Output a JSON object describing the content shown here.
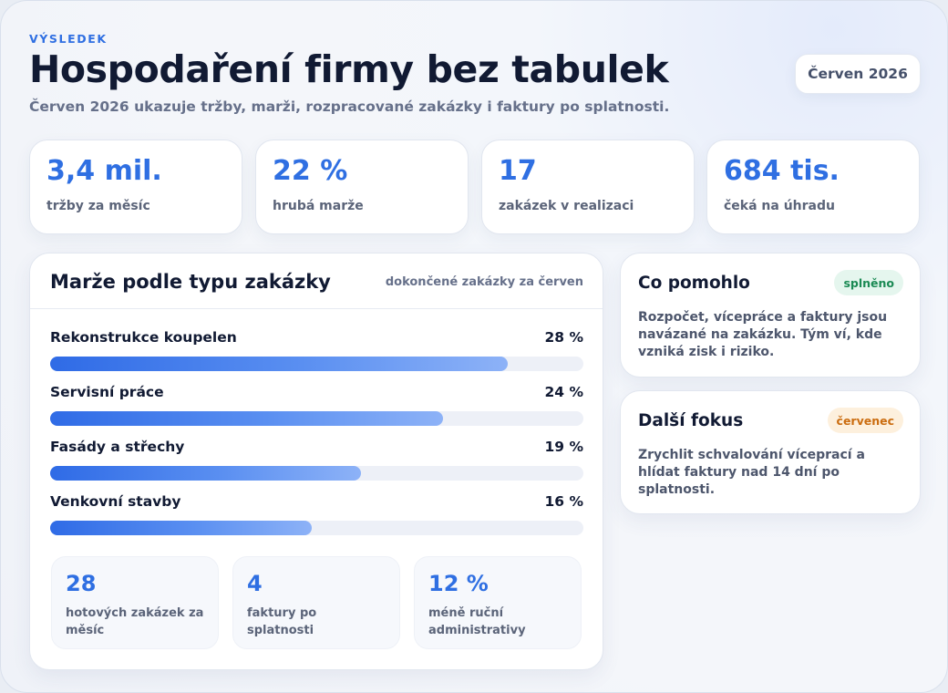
{
  "header": {
    "eyebrow": "VÝSLEDEK",
    "title": "Hospodaření firmy bez tabulek",
    "subtitle": "Červen 2026 ukazuje tržby, marži, rozpracované zakázky i faktury po splatnosti.",
    "period": "Červen 2026"
  },
  "kpis": [
    {
      "value": "3,4 mil.",
      "label": "tržby za měsíc"
    },
    {
      "value": "22 %",
      "label": "hrubá marže"
    },
    {
      "value": "17",
      "label": "zakázek v realizaci"
    },
    {
      "value": "684 tis.",
      "label": "čeká na úhradu"
    }
  ],
  "margin_card": {
    "title": "Marže podle typu zakázky",
    "note": "dokončené zakázky za červen",
    "rows": [
      {
        "name": "Rekonstrukce koupelen",
        "value_label": "28 %"
      },
      {
        "name": "Servisní práce",
        "value_label": "24 %"
      },
      {
        "name": "Fasády a střechy",
        "value_label": "19 %"
      },
      {
        "name": "Venkovní stavby",
        "value_label": "16 %"
      }
    ],
    "stats": [
      {
        "value": "28",
        "label": "hotových zakázek za měsíc"
      },
      {
        "value": "4",
        "label": "faktury po splatnosti"
      },
      {
        "value": "12 %",
        "label": "méně ruční administrativy"
      }
    ]
  },
  "chart_data": {
    "type": "bar",
    "categories": [
      "Rekonstrukce koupelen",
      "Servisní práce",
      "Fasády a střechy",
      "Venkovní stavby"
    ],
    "values": [
      28,
      24,
      19,
      16
    ],
    "title": "Marže podle typu zakázky",
    "ylim": [
      0,
      32.6
    ]
  },
  "side": {
    "helped": {
      "title": "Co pomohlo",
      "badge": "splněno",
      "text": "Rozpočet, vícepráce a faktury jsou navázané na zakázku. Tým ví, kde vzniká zisk i riziko."
    },
    "next": {
      "title": "Další fokus",
      "badge": "červenec",
      "text": "Zrychlit schvalování víceprací a hlídat faktury nad 14 dní po splatnosti."
    }
  },
  "colors": {
    "accent": "#2f6fe2",
    "text": "#111a33",
    "muted": "#66708a",
    "success": "#1b8a54",
    "warning": "#cb6d10"
  }
}
